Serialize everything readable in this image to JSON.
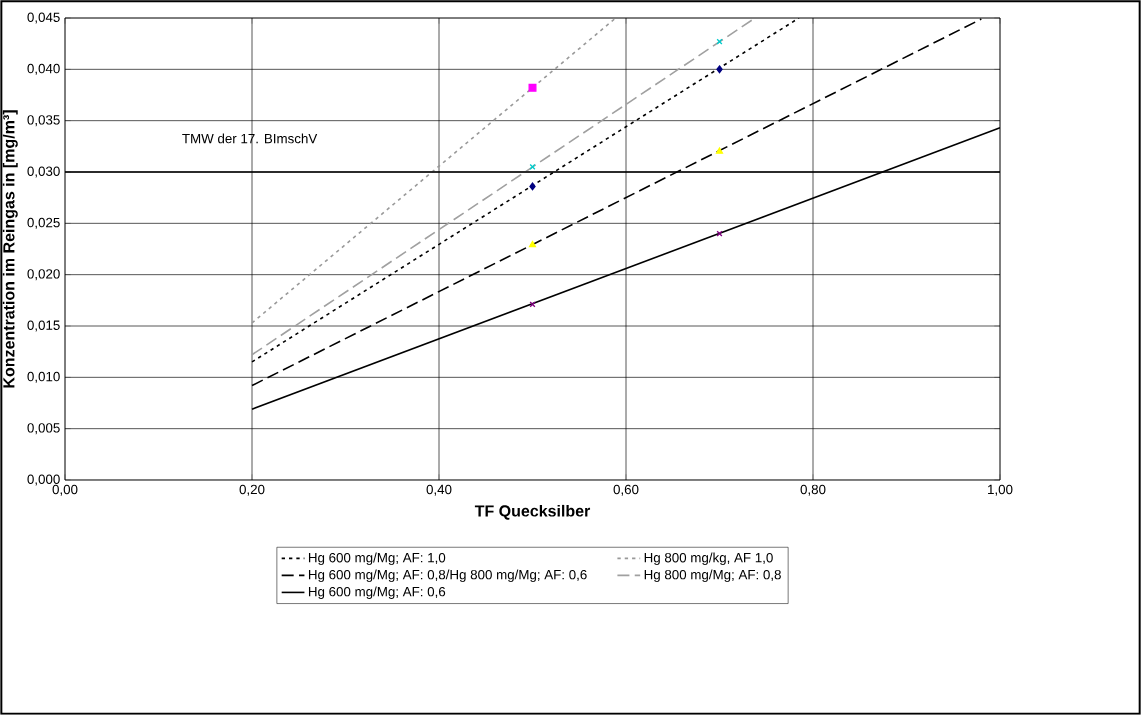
{
  "chart_data": {
    "type": "line",
    "xlabel": "TF Quecksilber",
    "ylabel": "Konzentration im Reingas in [mg/m³]",
    "xlim": [
      0,
      1
    ],
    "ylim": [
      0,
      0.045
    ],
    "xticks": [
      {
        "value": 0,
        "label": "0,00"
      },
      {
        "value": 0.2,
        "label": "0,20"
      },
      {
        "value": 0.4,
        "label": "0,40"
      },
      {
        "value": 0.6,
        "label": "0,60"
      },
      {
        "value": 0.8,
        "label": "0,80"
      },
      {
        "value": 1,
        "label": "1,00"
      }
    ],
    "yticks": [
      {
        "value": 0,
        "label": "0,000"
      },
      {
        "value": 0.005,
        "label": "0,005"
      },
      {
        "value": 0.01,
        "label": "0,010"
      },
      {
        "value": 0.015,
        "label": "0,015"
      },
      {
        "value": 0.02,
        "label": "0,020"
      },
      {
        "value": 0.025,
        "label": "0,025"
      },
      {
        "value": 0.03,
        "label": "0,030"
      },
      {
        "value": 0.035,
        "label": "0,035"
      },
      {
        "value": 0.04,
        "label": "0,040"
      },
      {
        "value": 0.045,
        "label": "0,045"
      }
    ],
    "grid": true,
    "legend": "bottom",
    "ref_lines": [
      {
        "axis": "y",
        "value": 0.03,
        "label": "TMW der 17. BImschV",
        "color": "#000000"
      }
    ],
    "series": [
      {
        "name": "Hg 600 mg/Mg; AF: 1,0",
        "color": "#000000",
        "line_style": "dotted",
        "x": [
          0.2,
          0.785
        ],
        "values": [
          0.0115,
          0.045
        ]
      },
      {
        "name": "Hg 800 mg/kg, AF 1,0",
        "color": "#999999",
        "line_style": "dotted",
        "x": [
          0.2,
          0.589
        ],
        "values": [
          0.0153,
          0.045
        ]
      },
      {
        "name": "Hg 600 mg/Mg; AF: 0,8/Hg 800 mg/Mg; AF: 0,6",
        "color": "#000000",
        "line_style": "dashed",
        "x": [
          0.2,
          0.98
        ],
        "values": [
          0.0092,
          0.0449
        ]
      },
      {
        "name": "Hg 800 mg/Mg; AF: 0,8",
        "color": "#a0a0a0",
        "line_style": "dashed",
        "x": [
          0.2,
          0.738
        ],
        "values": [
          0.0122,
          0.045
        ]
      },
      {
        "name": "Hg 600 mg/Mg; AF: 0,6",
        "color": "#000000",
        "line_style": "solid",
        "x": [
          0.2,
          1.0
        ],
        "values": [
          0.0069,
          0.0343
        ]
      },
      {
        "type": "scatter",
        "marker": "square",
        "color": "#ff00ff",
        "x": [
          0.5
        ],
        "values": [
          0.0382
        ]
      },
      {
        "type": "scatter",
        "marker": "cross",
        "color": "#00cccc",
        "x": [
          0.5,
          0.7
        ],
        "values": [
          0.0305,
          0.0427
        ]
      },
      {
        "type": "scatter",
        "marker": "diamond",
        "color": "#000080",
        "x": [
          0.5,
          0.7
        ],
        "values": [
          0.0286,
          0.04
        ]
      },
      {
        "type": "scatter",
        "marker": "triangle",
        "color": "#ffff00",
        "x": [
          0.5,
          0.7
        ],
        "values": [
          0.0229,
          0.032
        ]
      },
      {
        "type": "scatter",
        "marker": "cross",
        "color": "#800080",
        "x": [
          0.5,
          0.7
        ],
        "values": [
          0.0171,
          0.024
        ]
      }
    ]
  }
}
